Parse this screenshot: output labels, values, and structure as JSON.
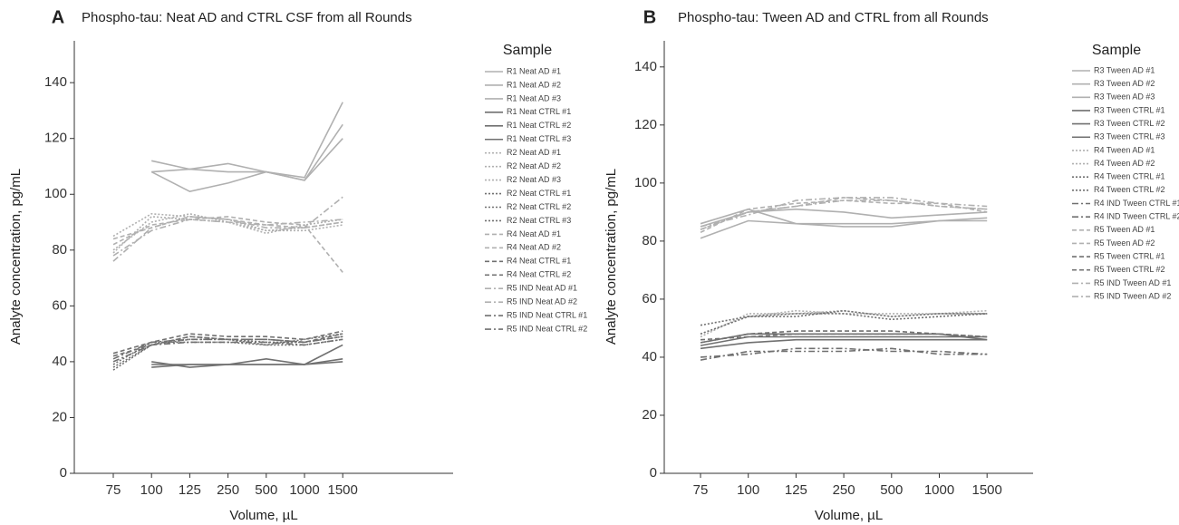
{
  "chart_data": [
    {
      "type": "line",
      "panel_label": "A",
      "title": "Phospho-tau: Neat AD and CTRL CSF from all Rounds",
      "x_label": "Volume, µL",
      "y_label": "Analyte concentration, pg/mL",
      "legend_title": "Sample",
      "categories": [
        "75",
        "100",
        "125",
        "250",
        "500",
        "1000",
        "1500"
      ],
      "ylim": [
        0,
        155
      ],
      "yticks": [
        0,
        20,
        40,
        60,
        80,
        100,
        120,
        140
      ],
      "series": [
        {
          "name": "R1 Neat AD #1",
          "color": "#b0b0b0",
          "dash": "solid",
          "values": [
            null,
            108,
            109,
            108,
            108,
            106,
            133
          ]
        },
        {
          "name": "R1 Neat AD #2",
          "color": "#b0b0b0",
          "dash": "solid",
          "values": [
            null,
            112,
            109,
            111,
            108,
            105,
            125
          ]
        },
        {
          "name": "R1 Neat AD #3",
          "color": "#b0b0b0",
          "dash": "solid",
          "values": [
            null,
            108,
            101,
            104,
            108,
            105,
            120
          ]
        },
        {
          "name": "R1 Neat CTRL #1",
          "color": "#707070",
          "dash": "solid",
          "values": [
            null,
            40,
            38,
            39,
            41,
            39,
            46
          ]
        },
        {
          "name": "R1 Neat CTRL #2",
          "color": "#707070",
          "dash": "solid",
          "values": [
            null,
            39,
            39,
            39,
            39,
            39,
            41
          ]
        },
        {
          "name": "R1 Neat CTRL #3",
          "color": "#707070",
          "dash": "solid",
          "values": [
            null,
            38,
            39,
            39,
            39,
            39,
            40
          ]
        },
        {
          "name": "R2 Neat AD #1",
          "color": "#b0b0b0",
          "dash": "dotted",
          "values": [
            85,
            93,
            92,
            91,
            87,
            88,
            90
          ]
        },
        {
          "name": "R2 Neat AD #2",
          "color": "#b0b0b0",
          "dash": "dotted",
          "values": [
            80,
            90,
            93,
            90,
            87,
            87,
            89
          ]
        },
        {
          "name": "R2 Neat AD #3",
          "color": "#b0b0b0",
          "dash": "dotted",
          "values": [
            79,
            92,
            91,
            90,
            86,
            89,
            91
          ]
        },
        {
          "name": "R2 Neat CTRL #1",
          "color": "#707070",
          "dash": "dotted",
          "values": [
            38,
            46,
            49,
            48,
            47,
            47,
            49
          ]
        },
        {
          "name": "R2 Neat CTRL #2",
          "color": "#707070",
          "dash": "dotted",
          "values": [
            37,
            46,
            48,
            48,
            46,
            48,
            50
          ]
        },
        {
          "name": "R2 Neat CTRL #3",
          "color": "#707070",
          "dash": "dotted",
          "values": [
            39,
            47,
            47,
            47,
            46,
            46,
            48
          ]
        },
        {
          "name": "R4 Neat AD #1",
          "color": "#b0b0b0",
          "dash": "dashed",
          "values": [
            84,
            88,
            92,
            91,
            89,
            88,
            90
          ]
        },
        {
          "name": "R4 Neat AD #2",
          "color": "#b0b0b0",
          "dash": "dashed",
          "values": [
            82,
            89,
            91,
            92,
            90,
            89,
            72
          ]
        },
        {
          "name": "R4 Neat CTRL #1",
          "color": "#707070",
          "dash": "dashed",
          "values": [
            43,
            47,
            50,
            49,
            49,
            48,
            51
          ]
        },
        {
          "name": "R4 Neat CTRL #2",
          "color": "#707070",
          "dash": "dashed",
          "values": [
            42,
            46,
            49,
            48,
            48,
            47,
            50
          ]
        },
        {
          "name": "R5 IND Neat AD #1",
          "color": "#b0b0b0",
          "dash": "dashdot",
          "values": [
            76,
            88,
            92,
            91,
            88,
            88,
            99
          ]
        },
        {
          "name": "R5 IND Neat AD #2",
          "color": "#b0b0b0",
          "dash": "dashdot",
          "values": [
            78,
            87,
            91,
            90,
            89,
            90,
            91
          ]
        },
        {
          "name": "R5 IND Neat CTRL #1",
          "color": "#707070",
          "dash": "dashdot",
          "values": [
            41,
            47,
            48,
            48,
            48,
            47,
            49
          ]
        },
        {
          "name": "R5 IND Neat CTRL #2",
          "color": "#707070",
          "dash": "dashdot",
          "values": [
            40,
            46,
            47,
            47,
            47,
            46,
            48
          ]
        }
      ]
    },
    {
      "type": "line",
      "panel_label": "B",
      "title": "Phospho-tau: Tween AD and CTRL from all Rounds",
      "x_label": "Volume, µL",
      "y_label": "Analyte concentration, pg/mL",
      "legend_title": "Sample",
      "categories": [
        "75",
        "100",
        "125",
        "250",
        "500",
        "1000",
        "1500"
      ],
      "ylim": [
        0,
        149
      ],
      "yticks": [
        0,
        20,
        40,
        60,
        80,
        100,
        120,
        140
      ],
      "series": [
        {
          "name": "R3 Tween AD #1",
          "color": "#b0b0b0",
          "dash": "solid",
          "values": [
            86,
            91,
            86,
            85,
            85,
            87,
            87
          ]
        },
        {
          "name": "R3 Tween AD #2",
          "color": "#b0b0b0",
          "dash": "solid",
          "values": [
            81,
            87,
            86,
            86,
            86,
            87,
            88
          ]
        },
        {
          "name": "R3 Tween AD #3",
          "color": "#b0b0b0",
          "dash": "solid",
          "values": [
            85,
            90,
            91,
            90,
            88,
            89,
            90
          ]
        },
        {
          "name": "R3 Tween CTRL #1",
          "color": "#707070",
          "dash": "solid",
          "values": [
            44,
            47,
            47,
            47,
            47,
            47,
            47
          ]
        },
        {
          "name": "R3 Tween CTRL #2",
          "color": "#707070",
          "dash": "solid",
          "values": [
            43,
            45,
            46,
            46,
            46,
            46,
            46
          ]
        },
        {
          "name": "R3 Tween CTRL #3",
          "color": "#707070",
          "dash": "solid",
          "values": [
            45,
            48,
            48,
            48,
            48,
            48,
            46
          ]
        },
        {
          "name": "R4 Tween AD #1",
          "color": "#b0b0b0",
          "dash": "dotted",
          "values": [
            48,
            54,
            56,
            55,
            55,
            55,
            55
          ]
        },
        {
          "name": "R4 Tween AD #2",
          "color": "#b0b0b0",
          "dash": "dotted",
          "values": [
            47,
            55,
            55,
            56,
            54,
            55,
            56
          ]
        },
        {
          "name": "R4 Tween CTRL #1",
          "color": "#707070",
          "dash": "dotted",
          "values": [
            48,
            54,
            55,
            55,
            53,
            54,
            55
          ]
        },
        {
          "name": "R4 Tween CTRL #2",
          "color": "#707070",
          "dash": "dotted",
          "values": [
            51,
            54,
            54,
            56,
            54,
            55,
            55
          ]
        },
        {
          "name": "R4 IND Tween CTRL #1",
          "color": "#707070",
          "dash": "dashdot",
          "values": [
            40,
            41,
            43,
            43,
            42,
            42,
            41
          ]
        },
        {
          "name": "R4 IND Tween CTRL #2",
          "color": "#707070",
          "dash": "dashdot",
          "values": [
            39,
            42,
            42,
            42,
            43,
            41,
            41
          ]
        },
        {
          "name": "R5 Tween AD #1",
          "color": "#b0b0b0",
          "dash": "dashed",
          "values": [
            84,
            90,
            92,
            95,
            94,
            92,
            91
          ]
        },
        {
          "name": "R5 Tween AD #2",
          "color": "#b0b0b0",
          "dash": "dashed",
          "values": [
            83,
            91,
            93,
            94,
            93,
            93,
            90
          ]
        },
        {
          "name": "R5 Tween CTRL #1",
          "color": "#707070",
          "dash": "dashed",
          "values": [
            45,
            48,
            49,
            49,
            49,
            48,
            47
          ]
        },
        {
          "name": "R5 Tween CTRL #2",
          "color": "#707070",
          "dash": "dashed",
          "values": [
            46,
            47,
            48,
            48,
            48,
            48,
            47
          ]
        },
        {
          "name": "R5 IND Tween AD #1",
          "color": "#b0b0b0",
          "dash": "dashdot",
          "values": [
            85,
            89,
            94,
            95,
            95,
            93,
            92
          ]
        },
        {
          "name": "R5 IND Tween AD #2",
          "color": "#b0b0b0",
          "dash": "dashdot",
          "values": [
            84,
            90,
            92,
            94,
            94,
            92,
            91
          ]
        }
      ]
    }
  ]
}
